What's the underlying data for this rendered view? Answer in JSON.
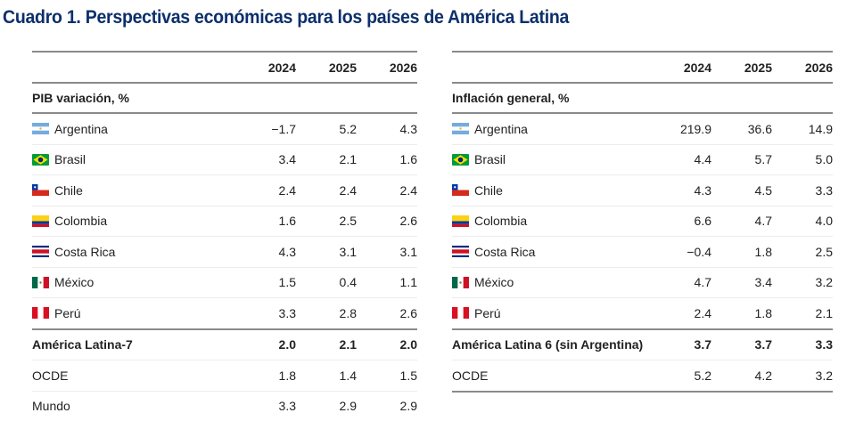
{
  "title": "Cuadro 1. Perspectivas económicas para los países de América Latina",
  "tables": [
    {
      "years": [
        "2024",
        "2025",
        "2026"
      ],
      "section": "PIB variación, %",
      "rows": [
        {
          "name": "Argentina",
          "flag": "flag-argentina",
          "values": [
            "−1.7",
            "5.2",
            "4.3"
          ]
        },
        {
          "name": "Brasil",
          "flag": "flag-brasil",
          "values": [
            "3.4",
            "2.1",
            "1.6"
          ]
        },
        {
          "name": "Chile",
          "flag": "flag-chile",
          "values": [
            "2.4",
            "2.4",
            "2.4"
          ]
        },
        {
          "name": "Colombia",
          "flag": "flag-colombia",
          "values": [
            "1.6",
            "2.5",
            "2.6"
          ]
        },
        {
          "name": "Costa Rica",
          "flag": "flag-costa-rica",
          "values": [
            "4.3",
            "3.1",
            "3.1"
          ]
        },
        {
          "name": "México",
          "flag": "flag-mexico",
          "values": [
            "1.5",
            "0.4",
            "1.1"
          ]
        },
        {
          "name": "Perú",
          "flag": "flag-peru",
          "values": [
            "3.3",
            "2.8",
            "2.6"
          ]
        }
      ],
      "aggregate": {
        "name": "América Latina-7",
        "values": [
          "2.0",
          "2.1",
          "2.0"
        ]
      },
      "others": [
        {
          "name": "OCDE",
          "values": [
            "1.8",
            "1.4",
            "1.5"
          ]
        },
        {
          "name": "Mundo",
          "values": [
            "3.3",
            "2.9",
            "2.9"
          ]
        }
      ]
    },
    {
      "years": [
        "2024",
        "2025",
        "2026"
      ],
      "section": "Inflación general, %",
      "rows": [
        {
          "name": "Argentina",
          "flag": "flag-argentina",
          "values": [
            "219.9",
            "36.6",
            "14.9"
          ]
        },
        {
          "name": "Brasil",
          "flag": "flag-brasil",
          "values": [
            "4.4",
            "5.7",
            "5.0"
          ]
        },
        {
          "name": "Chile",
          "flag": "flag-chile",
          "values": [
            "4.3",
            "4.5",
            "3.3"
          ]
        },
        {
          "name": "Colombia",
          "flag": "flag-colombia",
          "values": [
            "6.6",
            "4.7",
            "4.0"
          ]
        },
        {
          "name": "Costa Rica",
          "flag": "flag-costa-rica",
          "values": [
            "−0.4",
            "1.8",
            "2.5"
          ]
        },
        {
          "name": "México",
          "flag": "flag-mexico",
          "values": [
            "4.7",
            "3.4",
            "3.2"
          ]
        },
        {
          "name": "Perú",
          "flag": "flag-peru",
          "values": [
            "2.4",
            "1.8",
            "2.1"
          ]
        }
      ],
      "aggregate": {
        "name": "América Latina 6 (sin Argentina)",
        "values": [
          "3.7",
          "3.7",
          "3.3"
        ]
      },
      "others": [
        {
          "name": "OCDE",
          "values": [
            "5.2",
            "4.2",
            "3.2"
          ]
        }
      ]
    }
  ],
  "colors": {
    "title": "#0c2f6b",
    "rule": "#8a8a8a",
    "divider": "#ececec"
  }
}
